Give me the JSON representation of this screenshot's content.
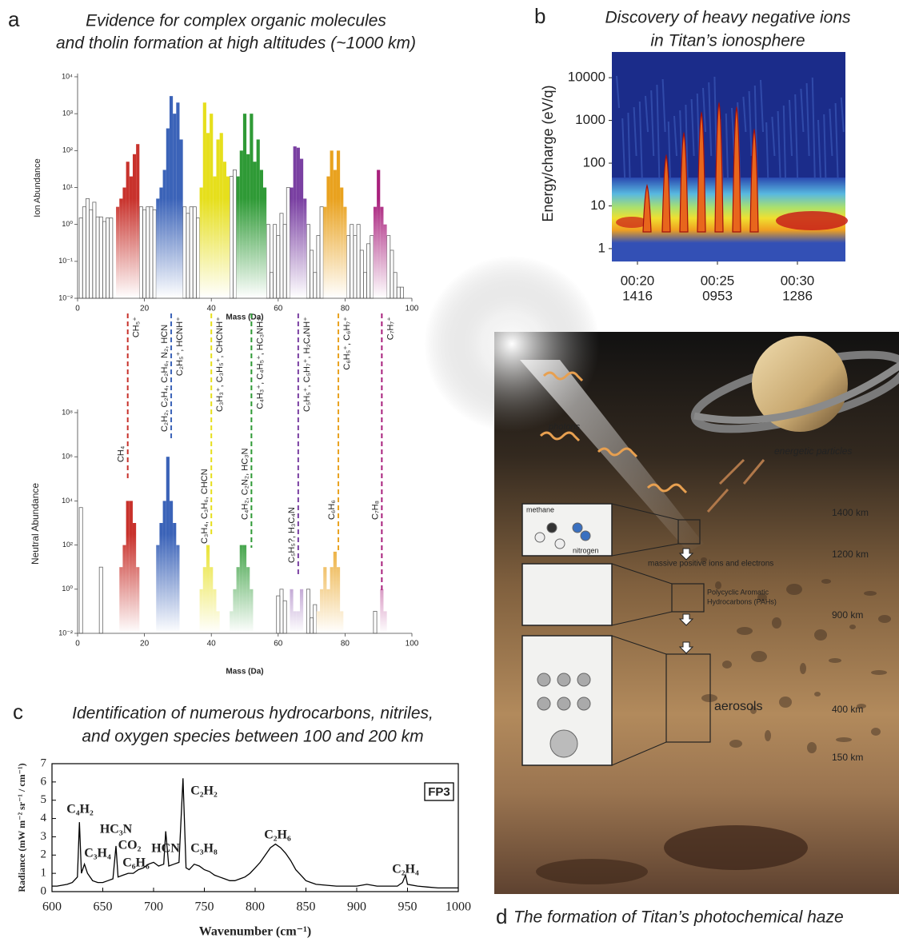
{
  "chart_data": [
    {
      "panel": "a",
      "type": "bar",
      "log_y": true,
      "title": [
        "Evidence for complex organic molecules",
        "and tholin formation at high altitudes  (~1000 km)"
      ],
      "ylabel": "Ion Abundance",
      "xlabel": "Mass (Da)",
      "xlim": [
        0,
        100
      ],
      "xticks": [
        0,
        20,
        40,
        60,
        80,
        100
      ],
      "ylim": [
        0.01,
        10000
      ],
      "yticks": [
        {
          "value": 0.01,
          "label": "10⁻²"
        },
        {
          "value": 0.1,
          "label": "10⁻¹"
        },
        {
          "value": 1,
          "label": "10⁰"
        },
        {
          "value": 10,
          "label": "10¹"
        },
        {
          "value": 100,
          "label": "10²"
        },
        {
          "value": 1000,
          "label": "10³"
        },
        {
          "value": 10000,
          "label": "10⁴"
        }
      ],
      "series": [
        {
          "color": "#666666",
          "outline": true,
          "x": [
            1,
            2,
            3,
            4,
            5,
            6,
            7,
            8,
            9,
            10,
            19,
            20,
            21,
            22,
            23,
            32,
            33,
            34,
            35,
            36,
            46,
            47,
            57,
            58,
            59,
            60,
            61,
            62,
            63,
            69,
            70,
            71,
            72,
            73,
            81,
            82,
            83,
            84,
            85,
            86,
            87,
            88,
            93,
            94,
            95,
            96,
            97
          ],
          "values": [
            1.5,
            3,
            5,
            2.5,
            4,
            1.6,
            1.6,
            1.2,
            1.5,
            1.5,
            3,
            2.5,
            3,
            3,
            2.5,
            3,
            2,
            3,
            3,
            1.5,
            20,
            30,
            1,
            0.05,
            1,
            0.5,
            2,
            1,
            10,
            1,
            0.2,
            0.05,
            0.5,
            3,
            0.5,
            1,
            0.5,
            1,
            0.2,
            0.05,
            0.3,
            0.5,
            0.5,
            0.2,
            0.05,
            0.02,
            0.02
          ]
        },
        {
          "color": "#c8322c",
          "x": [
            12,
            13,
            14,
            15,
            16,
            17,
            18
          ],
          "values": [
            3,
            5,
            10,
            50,
            20,
            80,
            150
          ]
        },
        {
          "color": "#3b63b8",
          "x": [
            24,
            25,
            26,
            27,
            28,
            29,
            30,
            31
          ],
          "values": [
            5,
            10,
            30,
            400,
            3000,
            1000,
            2000,
            200
          ]
        },
        {
          "color": "#e6df1c",
          "x": [
            37,
            38,
            39,
            40,
            41,
            42,
            43,
            44,
            45
          ],
          "values": [
            10,
            2000,
            300,
            1000,
            20,
            200,
            300,
            50,
            20
          ]
        },
        {
          "color": "#2f9a36",
          "x": [
            48,
            49,
            50,
            51,
            52,
            53,
            54,
            55,
            56
          ],
          "values": [
            20,
            100,
            1000,
            80,
            1000,
            50,
            200,
            30,
            10
          ]
        },
        {
          "color": "#7a40a2",
          "x": [
            64,
            65,
            66,
            67,
            68
          ],
          "values": [
            10,
            130,
            120,
            60,
            5
          ]
        },
        {
          "color": "#e9a21f",
          "x": [
            74,
            75,
            76,
            77,
            78,
            79,
            80
          ],
          "values": [
            3,
            20,
            100,
            30,
            100,
            10,
            3
          ]
        },
        {
          "color": "#a8207c",
          "x": [
            89,
            90,
            91,
            92
          ],
          "values": [
            3,
            30,
            3,
            1
          ]
        }
      ],
      "annotations": [
        {
          "text": "CH₅⁺",
          "x": 15,
          "color": "#c8322c"
        },
        {
          "text": "C₂H₅⁺, HCNH⁺",
          "x": 28,
          "color": "#3b63b8"
        },
        {
          "text": "C₃H₃⁺, C₃H₅⁺, CHCNH⁺",
          "x": 40,
          "color": "#e6df1c"
        },
        {
          "text": "C₄H₃⁺, C₄H₅⁺, HC₃NH⁺",
          "x": 52,
          "color": "#2f9a36"
        },
        {
          "text": "C₅H₅⁺, C₅H₇⁺, H₂C₄NH⁺",
          "x": 66,
          "color": "#7a40a2"
        },
        {
          "text": "C₆H₅⁺, C₆H₇⁺",
          "x": 78,
          "color": "#e9a21f"
        },
        {
          "text": "C₇H₇⁺",
          "x": 91,
          "color": "#a8207c"
        }
      ]
    },
    {
      "type": "bar",
      "log_y": true,
      "ylabel": "Neutral Abundance",
      "xlabel": "Mass (Da)",
      "xlim": [
        0,
        100
      ],
      "xticks": [
        0,
        20,
        40,
        60,
        80,
        100
      ],
      "ylim": [
        0.01,
        100000000
      ],
      "yticks": [
        {
          "value": 0.01,
          "label": "10⁻²"
        },
        {
          "value": 1,
          "label": "10⁰"
        },
        {
          "value": 100,
          "label": "10²"
        },
        {
          "value": 10000,
          "label": "10⁴"
        },
        {
          "value": 1000000,
          "label": "10⁶"
        },
        {
          "value": 100000000,
          "label": "10⁸"
        }
      ],
      "series": [
        {
          "color": "#666666",
          "outline": true,
          "x": [
            1,
            7,
            60,
            61,
            62,
            69,
            70,
            71,
            89
          ],
          "values": [
            5000,
            10,
            0.5,
            1,
            0.3,
            1,
            0.05,
            0.2,
            0.1
          ]
        },
        {
          "color": "#c8322c",
          "x": [
            13,
            14,
            15,
            16,
            17,
            18
          ],
          "values": [
            10,
            100,
            10000,
            10000,
            1000,
            10
          ]
        },
        {
          "color": "#3b63b8",
          "x": [
            24,
            25,
            26,
            27,
            28,
            29,
            30
          ],
          "values": [
            100,
            1000,
            10000,
            1000000,
            10000,
            1000,
            100
          ]
        },
        {
          "color": "#e6df1c",
          "x": [
            37,
            38,
            39,
            40,
            41,
            42
          ],
          "values": [
            1,
            10,
            100,
            10,
            1,
            0.1
          ]
        },
        {
          "color": "#2f9a36",
          "x": [
            46,
            47,
            48,
            49,
            50,
            51,
            52
          ],
          "values": [
            0.1,
            1,
            10,
            100,
            100,
            10,
            1
          ]
        },
        {
          "color": "#7a40a2",
          "x": [
            63,
            64,
            65,
            66,
            67
          ],
          "values": [
            0.01,
            1,
            0.1,
            0.1,
            1
          ]
        },
        {
          "color": "#e9a21f",
          "x": [
            72,
            73,
            74,
            75,
            76,
            77,
            78,
            79
          ],
          "values": [
            0.1,
            1,
            10,
            1,
            10,
            50,
            10,
            0.1
          ]
        },
        {
          "color": "#a8207c",
          "x": [
            91,
            92
          ],
          "values": [
            1,
            0.1
          ]
        }
      ],
      "annotations": [
        {
          "text": "CH₄",
          "x": 15
        },
        {
          "text": "C₂H₂, C₂H₄, C₂H₆, N₂, HCN",
          "x": 28
        },
        {
          "text": "C₃H₄, C₃H₆, CHCN",
          "x": 40
        },
        {
          "text": "C₄H₂, C₂N₂, HC₃N",
          "x": 52
        },
        {
          "text": "C₅H₅?, H₃C₄N",
          "x": 66
        },
        {
          "text": "C₆H₆",
          "x": 78
        },
        {
          "text": "C₇H₈",
          "x": 91
        }
      ]
    },
    {
      "panel": "b",
      "type": "spectrogram",
      "log_y": true,
      "title": [
        "Discovery of heavy negative ions",
        "in Titan’s ionosphere"
      ],
      "ylabel": "Energy/charge   (eV/q)",
      "xlim": [
        18.4,
        33
      ],
      "ylim": [
        0.5,
        40000
      ],
      "xticks": [
        {
          "value": 20,
          "label": "00:20"
        },
        {
          "value": 25,
          "label": "00:25"
        },
        {
          "value": 30,
          "label": "00:30"
        }
      ],
      "xtick_sublabels": [
        "1416",
        "0953",
        "1286"
      ],
      "yticks": [
        1,
        10,
        100,
        1000,
        10000
      ],
      "x": [
        20.6,
        21.8,
        22.9,
        24.0,
        25.1,
        26.2,
        27.3
      ],
      "values": [
        30,
        150,
        500,
        1500,
        2500,
        2000,
        600
      ],
      "color": "#e8661c"
    },
    {
      "panel": "c",
      "type": "line",
      "title": [
        "Identification of numerous hydrocarbons, nitriles,",
        "and oxygen species between 100 and 200 km"
      ],
      "ylabel": "Radiance (mW m⁻² sr⁻¹ / cm⁻¹)",
      "xlabel": "Wavenumber (cm⁻¹)",
      "box_label": "FP3",
      "xlim": [
        600,
        1000
      ],
      "ylim": [
        0,
        7
      ],
      "xticks": [
        600,
        650,
        700,
        750,
        800,
        850,
        900,
        950,
        1000
      ],
      "yticks": [
        0,
        1,
        2,
        3,
        4,
        5,
        6,
        7
      ],
      "color": "#000000",
      "x": [
        600,
        605,
        610,
        615,
        620,
        625,
        627,
        629,
        632,
        635,
        640,
        645,
        650,
        655,
        660,
        663,
        665,
        670,
        675,
        680,
        685,
        690,
        695,
        700,
        705,
        710,
        712,
        715,
        720,
        725,
        729,
        732,
        735,
        740,
        745,
        750,
        755,
        760,
        765,
        770,
        775,
        780,
        785,
        790,
        795,
        800,
        805,
        810,
        815,
        820,
        825,
        830,
        835,
        840,
        845,
        850,
        855,
        860,
        870,
        880,
        890,
        900,
        910,
        920,
        930,
        940,
        945,
        948,
        950,
        960,
        970,
        980,
        990,
        1000
      ],
      "values": [
        0.3,
        0.3,
        0.35,
        0.4,
        0.5,
        0.8,
        3.8,
        1.0,
        1.5,
        1.0,
        0.6,
        0.5,
        0.5,
        0.6,
        0.7,
        2.5,
        0.8,
        0.9,
        1.0,
        1.0,
        1.2,
        1.3,
        1.5,
        1.6,
        1.4,
        1.5,
        3.3,
        1.4,
        1.5,
        1.6,
        6.2,
        1.3,
        1.2,
        1.5,
        1.4,
        1.2,
        1.1,
        0.9,
        0.8,
        0.7,
        0.6,
        0.6,
        0.7,
        0.8,
        1.0,
        1.3,
        1.6,
        2.0,
        2.4,
        2.6,
        2.4,
        2.1,
        1.7,
        1.2,
        0.9,
        0.6,
        0.5,
        0.4,
        0.35,
        0.3,
        0.3,
        0.3,
        0.4,
        0.3,
        0.3,
        0.3,
        0.5,
        0.9,
        0.4,
        0.3,
        0.25,
        0.2,
        0.2,
        0.2
      ],
      "annotations": [
        "C₄H₂",
        "C₃H₄",
        "HC₃N",
        "CO₂",
        "C₆H₆",
        "HCN",
        "C₂H₂",
        "C₃H₈",
        "C₂H₆",
        "C₂H₄"
      ]
    }
  ],
  "illustration": {
    "panel": "d",
    "caption": "The formation of Titan’s photochemical haze",
    "photons": "photons",
    "particles": "energetic particles",
    "methane": "methane",
    "nitrogen": "nitrogen",
    "ions": "massive positive ions and electrons",
    "pahs": [
      "Polycyclic Aromatic",
      "Hydrocarbons (PAHs)"
    ],
    "aerosols": "aerosols",
    "altitudes": [
      "1400 km",
      "1200 km",
      "900 km",
      "400 km",
      "150 km"
    ]
  }
}
